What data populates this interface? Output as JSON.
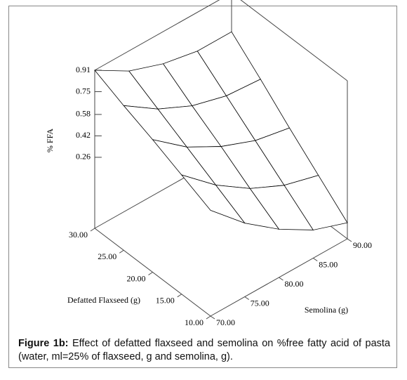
{
  "chart_data": {
    "type": "surface",
    "zlabel": "% FFA",
    "xlabel": "Defatted Flaxseed (g)",
    "ylabel": "Semolina (g)",
    "x": [
      10,
      15,
      20,
      25,
      30
    ],
    "y": [
      70,
      75,
      80,
      85,
      90
    ],
    "z": [
      [
        0.52,
        0.62,
        0.72,
        0.81,
        0.91
      ],
      [
        0.28,
        0.4,
        0.52,
        0.64,
        0.76
      ],
      [
        0.09,
        0.23,
        0.38,
        0.52,
        0.67
      ],
      [
        -0.06,
        0.11,
        0.28,
        0.45,
        0.62
      ],
      [
        -0.15,
        0.04,
        0.23,
        0.43,
        0.62
      ]
    ],
    "xlim": [
      10,
      30
    ],
    "ylim": [
      70,
      90
    ],
    "zlim": [
      -0.27,
      0.91
    ],
    "xticks": [
      {
        "value": 10,
        "label": "10.00"
      },
      {
        "value": 15,
        "label": "15.00"
      },
      {
        "value": 20,
        "label": "20.00"
      },
      {
        "value": 25,
        "label": "25.00"
      },
      {
        "value": 30,
        "label": "30.00"
      }
    ],
    "yticks": [
      {
        "value": 70,
        "label": "70.00"
      },
      {
        "value": 75,
        "label": "75.00"
      },
      {
        "value": 80,
        "label": "80.00"
      },
      {
        "value": 85,
        "label": "85.00"
      },
      {
        "value": 90,
        "label": "90.00"
      }
    ],
    "zticks": [
      0.26,
      0.42,
      0.58,
      0.75,
      0.91
    ],
    "color": "#000000"
  },
  "caption": {
    "label": "Figure 1b:",
    "text": "Effect of defatted flaxseed and semolina on %free fatty acid of pasta (water, ml=25% of flaxseed, g and semolina, g)."
  }
}
